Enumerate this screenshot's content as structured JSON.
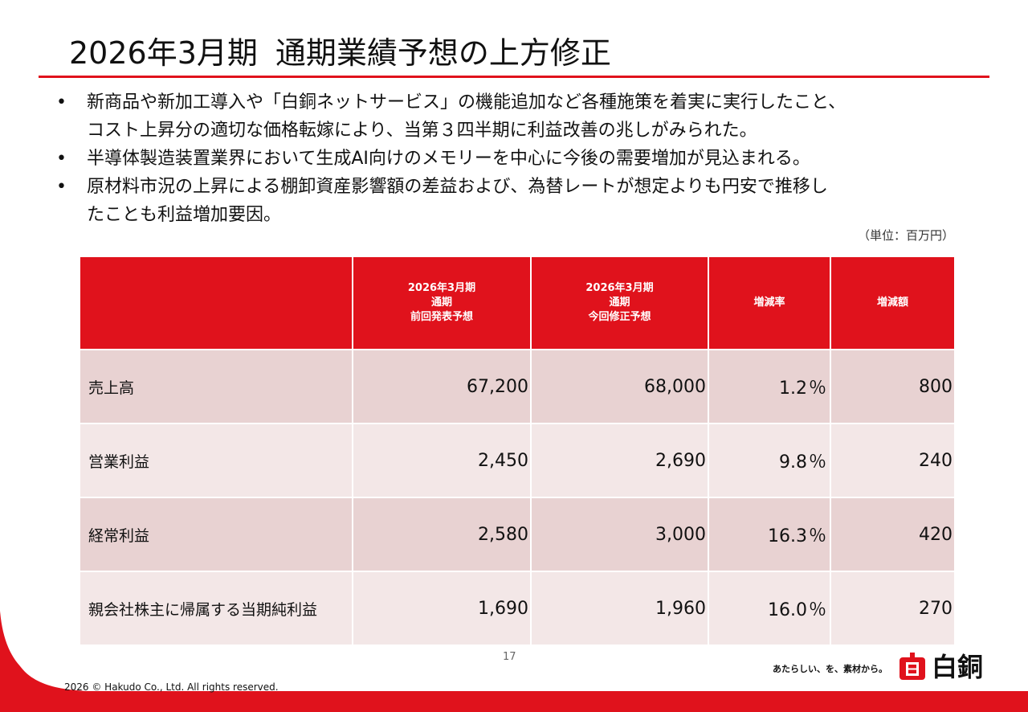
{
  "title": {
    "part1": "2026年3月期",
    "part2": "通期業績予想の上方修正"
  },
  "bullets": [
    {
      "line1": "新商品や新加工導入や「白銅ネットサービス」の機能追加など各種施策を着実に実行したこと、",
      "line2": "コスト上昇分の適切な価格転嫁により、当第３四半期に利益改善の兆しがみられた。"
    },
    {
      "line1": "半導体製造装置業界において生成AI向けのメモリーを中心に今後の需要増加が見込まれる。",
      "line2": ""
    },
    {
      "line1": "原材料市況の上昇による棚卸資産影響額の差益および、為替レートが想定よりも円安で推移し",
      "line2": "たことも利益増加要因。"
    }
  ],
  "bullet_symbol": "•",
  "unit_note": "（単位：百万円）",
  "table": {
    "headers": [
      {
        "lines": [
          "",
          "",
          ""
        ]
      },
      {
        "lines": [
          "2026年3月期",
          "通期",
          "前回発表予想"
        ]
      },
      {
        "lines": [
          "2026年3月期",
          "通期",
          "今回修正予想"
        ]
      },
      {
        "lines": [
          "増減率",
          "",
          ""
        ]
      },
      {
        "lines": [
          "増減額",
          "",
          ""
        ]
      }
    ],
    "rows": [
      {
        "label": "売上高",
        "prev": "67,200",
        "curr": "68,000",
        "rate": "1.2",
        "diff": "800"
      },
      {
        "label": "営業利益",
        "prev": "2,450",
        "curr": "2,690",
        "rate": "9.8",
        "diff": "240"
      },
      {
        "label": "経常利益",
        "prev": "2,580",
        "curr": "3,000",
        "rate": "16.3",
        "diff": "420"
      },
      {
        "label": "親会社株主に帰属する当期純利益",
        "prev": "1,690",
        "curr": "1,960",
        "rate": "16.0",
        "diff": "270"
      }
    ],
    "percent_symbol": "％"
  },
  "page_number": "17",
  "footer": {
    "copyright": "2026 © Hakudo Co., Ltd. All rights reserved.",
    "tagline": "あたらしい、を、素材から。",
    "logo_text": "白銅"
  },
  "colors": {
    "accent": "#e0121c",
    "row_odd": "#e8d2d2",
    "row_even": "#f3e7e7"
  },
  "icons": {
    "logo": "hakudo-logo-icon"
  }
}
